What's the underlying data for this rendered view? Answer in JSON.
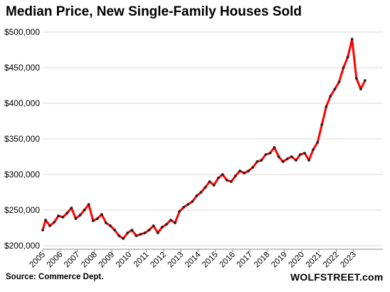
{
  "chart_data": {
    "type": "line",
    "title": "Median Price, New Single-Family Houses Sold",
    "xlabel": "",
    "ylabel": "",
    "ylim": [
      195000,
      505000
    ],
    "y_ticks": [
      {
        "value": 200000,
        "label": "$200,000"
      },
      {
        "value": 250000,
        "label": "$250,000"
      },
      {
        "value": 300000,
        "label": "$300,000"
      },
      {
        "value": 350000,
        "label": "$350,000"
      },
      {
        "value": 400000,
        "label": "$400,000"
      },
      {
        "value": 450000,
        "label": "$450,000"
      },
      {
        "value": 500000,
        "label": "$500,000"
      }
    ],
    "x_ticks": [
      "2005",
      "2006",
      "2007",
      "2008",
      "2009",
      "2010",
      "2011",
      "2012",
      "2013",
      "2014",
      "2015",
      "2016",
      "2017",
      "2018",
      "2019",
      "2020",
      "2021",
      "2022",
      "2023"
    ],
    "grid": "horizontal",
    "line_color": "#ff0000",
    "marker_color": "#222222",
    "series": [
      {
        "x": [
          "2005-01",
          "2005-03",
          "2005-06",
          "2005-09",
          "2005-12",
          "2006-03",
          "2006-06",
          "2006-09",
          "2006-12",
          "2007-03",
          "2007-06",
          "2007-09",
          "2007-12",
          "2008-03",
          "2008-06",
          "2008-09",
          "2008-12",
          "2009-03",
          "2009-06",
          "2009-09",
          "2009-12",
          "2010-03",
          "2010-06",
          "2010-09",
          "2010-12",
          "2011-03",
          "2011-06",
          "2011-09",
          "2011-12",
          "2012-03",
          "2012-06",
          "2012-09",
          "2012-12",
          "2013-03",
          "2013-06",
          "2013-09",
          "2013-12",
          "2014-03",
          "2014-06",
          "2014-09",
          "2014-12",
          "2015-03",
          "2015-06",
          "2015-09",
          "2015-12",
          "2016-03",
          "2016-06",
          "2016-09",
          "2016-12",
          "2017-03",
          "2017-06",
          "2017-09",
          "2017-12",
          "2018-03",
          "2018-06",
          "2018-09",
          "2018-12",
          "2019-03",
          "2019-06",
          "2019-09",
          "2019-12",
          "2020-03",
          "2020-06",
          "2020-09",
          "2020-12",
          "2021-03",
          "2021-06",
          "2021-09",
          "2021-12",
          "2022-03",
          "2022-06",
          "2022-09",
          "2022-12",
          "2023-03",
          "2023-06",
          "2023-09"
        ],
        "values": [
          222000,
          236000,
          228000,
          233000,
          242000,
          240000,
          246000,
          253000,
          238000,
          243000,
          250000,
          258000,
          235000,
          238000,
          244000,
          232000,
          228000,
          222000,
          214000,
          210000,
          218000,
          222000,
          214000,
          216000,
          218000,
          222000,
          228000,
          218000,
          226000,
          230000,
          236000,
          232000,
          248000,
          254000,
          258000,
          262000,
          270000,
          275000,
          282000,
          290000,
          285000,
          295000,
          300000,
          292000,
          290000,
          298000,
          305000,
          302000,
          305000,
          310000,
          318000,
          320000,
          328000,
          330000,
          338000,
          325000,
          318000,
          322000,
          325000,
          320000,
          328000,
          330000,
          320000,
          335000,
          345000,
          370000,
          395000,
          410000,
          420000,
          430000,
          450000,
          465000,
          490000,
          435000,
          420000,
          432000
        ]
      }
    ]
  },
  "footer": {
    "source": "Source: Commerce Dept.",
    "credit": "WOLFSTREET.com"
  }
}
